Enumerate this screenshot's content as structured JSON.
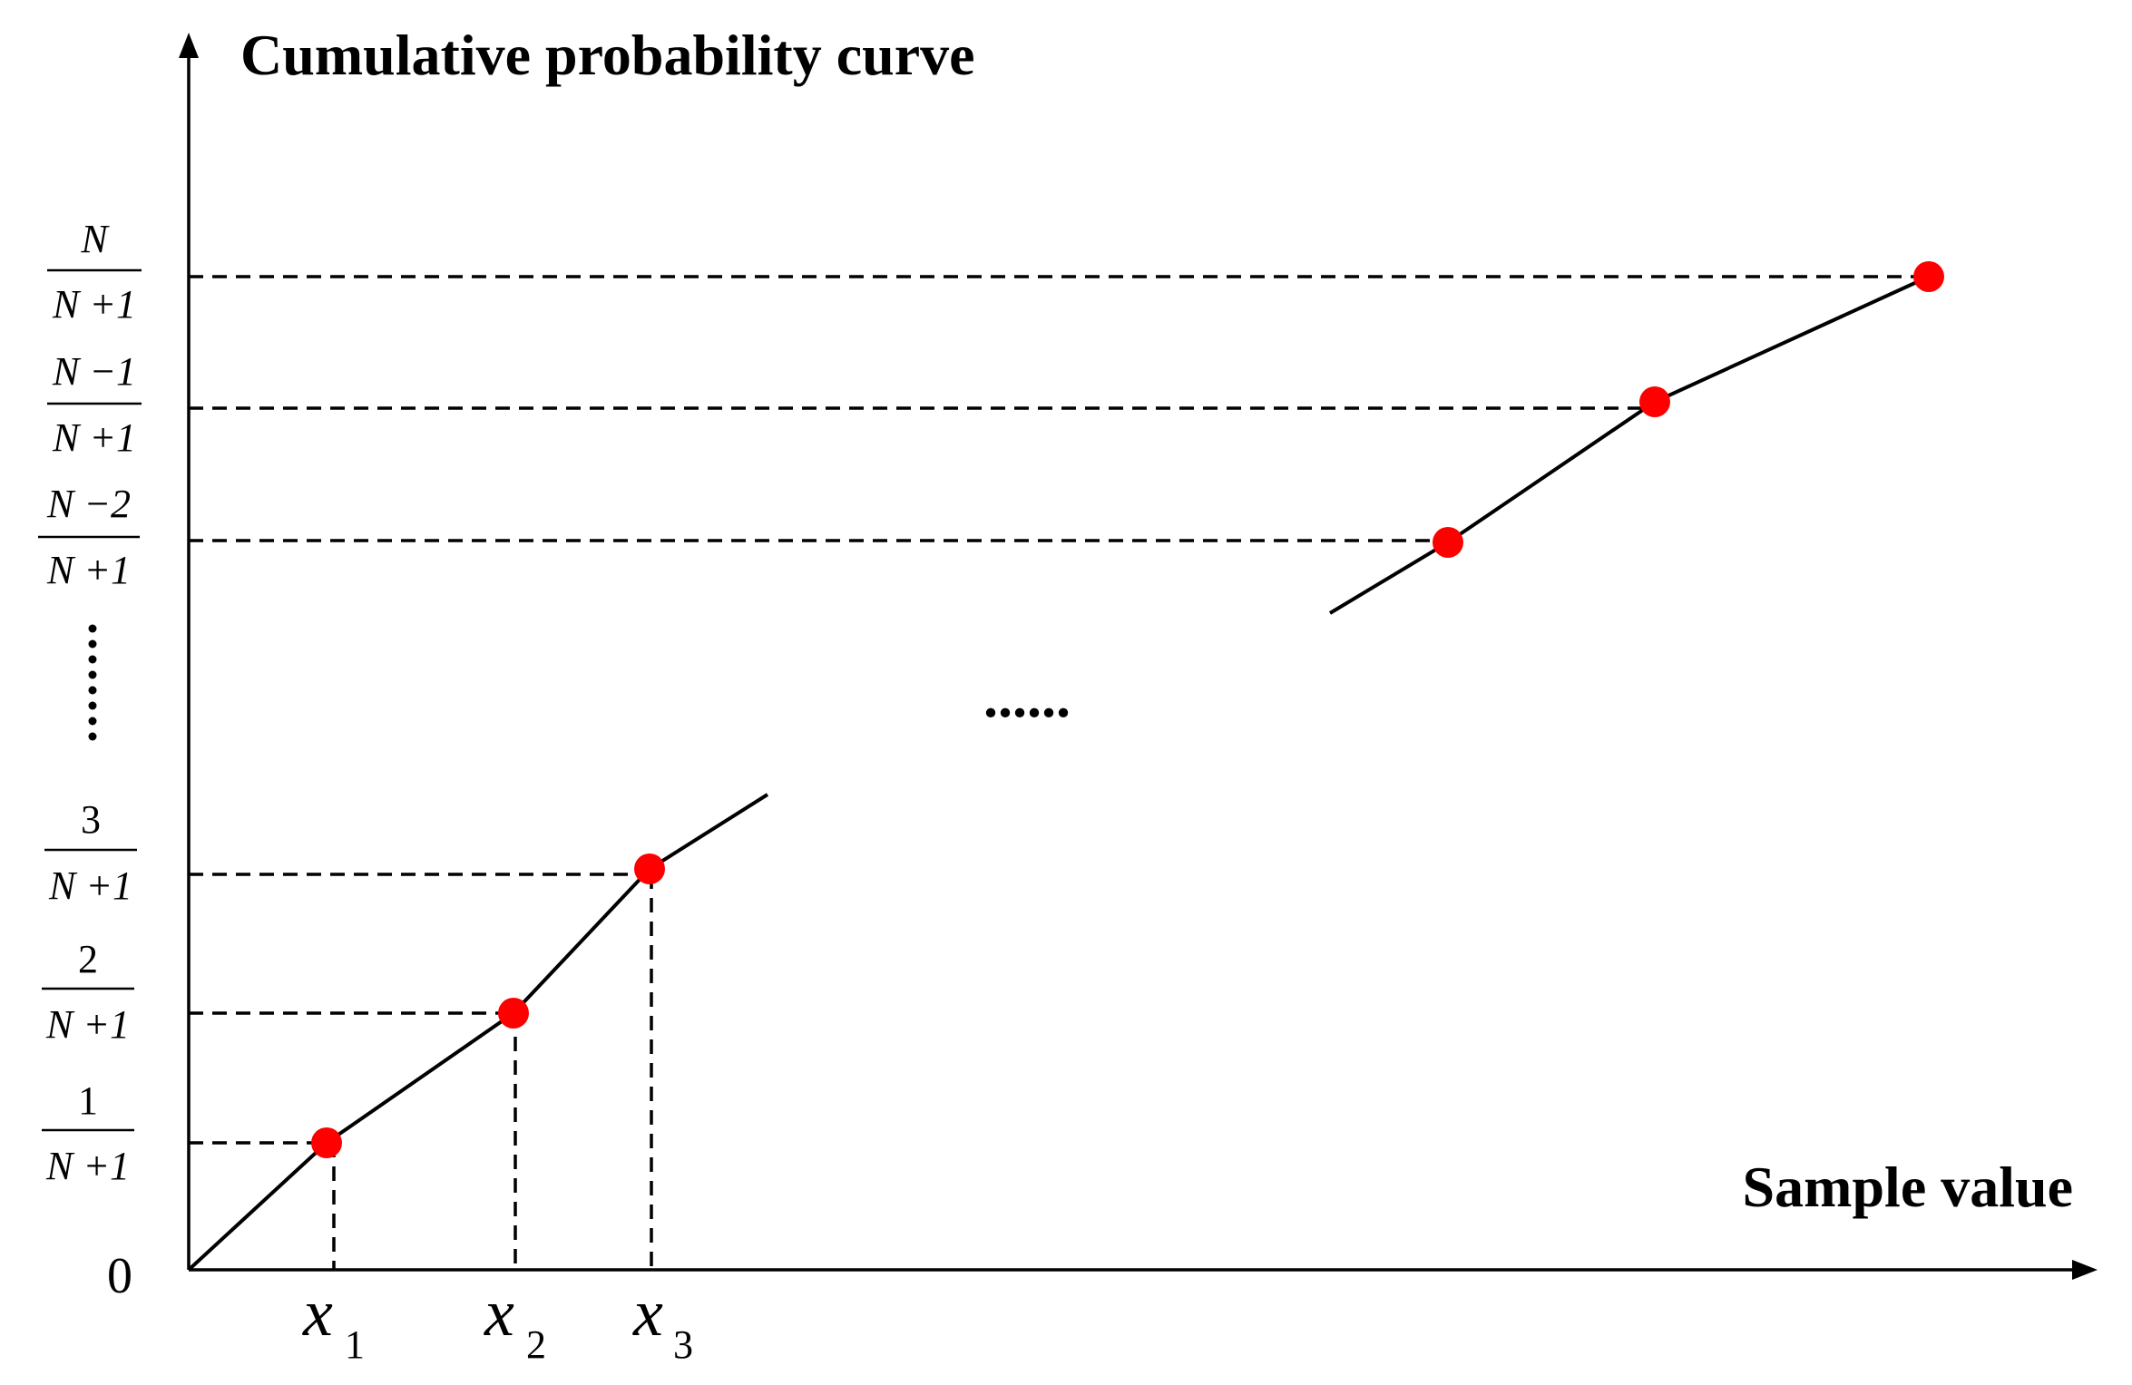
{
  "title": "Cumulative probability curve",
  "x_axis_label": "Sample value",
  "origin_label": "0",
  "ellipsis": "......",
  "y_ticks": [
    {
      "num": "1",
      "den": "N +1",
      "num_italic": false
    },
    {
      "num": "2",
      "den": "N +1",
      "num_italic": false
    },
    {
      "num": "3",
      "den": "N +1",
      "num_italic": false
    },
    {
      "num": "N −2",
      "den": "N +1",
      "num_italic": true
    },
    {
      "num": "N −1",
      "den": "N +1",
      "num_italic": true
    },
    {
      "num": "N",
      "den": "N +1",
      "num_italic": true
    }
  ],
  "x_ticks": [
    {
      "base": "x",
      "sub": "1"
    },
    {
      "base": "x",
      "sub": "2"
    },
    {
      "base": "x",
      "sub": "3"
    }
  ],
  "colors": {
    "point": "#ff0000",
    "line": "#000000"
  }
}
